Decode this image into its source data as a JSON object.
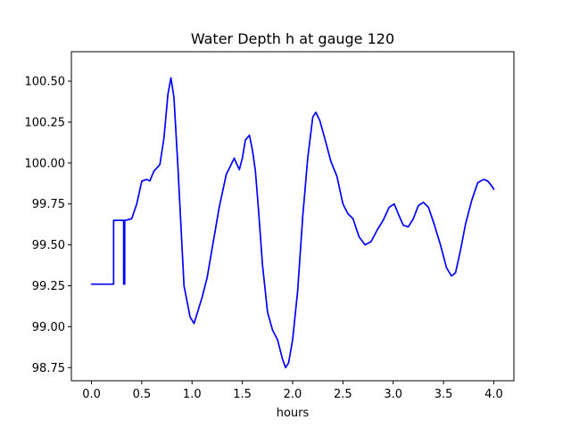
{
  "chart_data": {
    "type": "line",
    "title": "Water Depth h at gauge 120",
    "xlabel": "hours",
    "ylabel": "",
    "xlim": [
      -0.2,
      4.2
    ],
    "ylim": [
      98.67,
      100.68
    ],
    "grid": false,
    "x_ticks": [
      0.0,
      0.5,
      1.0,
      1.5,
      2.0,
      2.5,
      3.0,
      3.5,
      4.0
    ],
    "x_tick_labels": [
      "0.0",
      "0.5",
      "1.0",
      "1.5",
      "2.0",
      "2.5",
      "3.0",
      "3.5",
      "4.0"
    ],
    "y_ticks": [
      98.75,
      99.0,
      99.25,
      99.5,
      99.75,
      100.0,
      100.25,
      100.5
    ],
    "y_tick_labels": [
      "98.75",
      "99.00",
      "99.25",
      "99.50",
      "99.75",
      "100.00",
      "100.25",
      "100.50"
    ],
    "series": [
      {
        "color": "#0000ff",
        "x": [
          0.0,
          0.22,
          0.22,
          0.31,
          0.32,
          0.32,
          0.33,
          0.33,
          0.34,
          0.34,
          0.4,
          0.45,
          0.5,
          0.55,
          0.58,
          0.62,
          0.68,
          0.72,
          0.76,
          0.79,
          0.82,
          0.86,
          0.92,
          0.98,
          1.02,
          1.05,
          1.1,
          1.15,
          1.2,
          1.27,
          1.34,
          1.38,
          1.42,
          1.44,
          1.47,
          1.5,
          1.53,
          1.57,
          1.6,
          1.63,
          1.66,
          1.7,
          1.75,
          1.8,
          1.85,
          1.9,
          1.93,
          1.96,
          2.0,
          2.05,
          2.1,
          2.15,
          2.2,
          2.23,
          2.27,
          2.32,
          2.38,
          2.44,
          2.5,
          2.55,
          2.6,
          2.66,
          2.72,
          2.78,
          2.84,
          2.9,
          2.96,
          3.01,
          3.05,
          3.1,
          3.15,
          3.2,
          3.25,
          3.3,
          3.35,
          3.4,
          3.47,
          3.53,
          3.58,
          3.62,
          3.67,
          3.72,
          3.78,
          3.84,
          3.9,
          3.94,
          3.98,
          4.0
        ],
        "y": [
          99.26,
          99.26,
          99.65,
          99.65,
          99.65,
          99.26,
          99.26,
          99.65,
          99.65,
          99.65,
          99.66,
          99.75,
          99.89,
          99.9,
          99.89,
          99.95,
          99.99,
          100.15,
          100.42,
          100.52,
          100.4,
          99.97,
          99.25,
          99.06,
          99.02,
          99.08,
          99.18,
          99.3,
          99.48,
          99.73,
          99.93,
          99.98,
          100.03,
          100.0,
          99.96,
          100.03,
          100.14,
          100.17,
          100.08,
          99.95,
          99.72,
          99.38,
          99.09,
          98.98,
          98.92,
          98.8,
          98.75,
          98.78,
          98.92,
          99.22,
          99.67,
          100.03,
          100.28,
          100.31,
          100.26,
          100.15,
          100.01,
          99.92,
          99.75,
          99.69,
          99.66,
          99.55,
          99.5,
          99.52,
          99.59,
          99.65,
          99.73,
          99.75,
          99.69,
          99.62,
          99.61,
          99.66,
          99.74,
          99.76,
          99.73,
          99.64,
          99.5,
          99.36,
          99.31,
          99.33,
          99.47,
          99.63,
          99.77,
          99.88,
          99.9,
          99.89,
          99.86,
          99.84
        ]
      }
    ]
  }
}
